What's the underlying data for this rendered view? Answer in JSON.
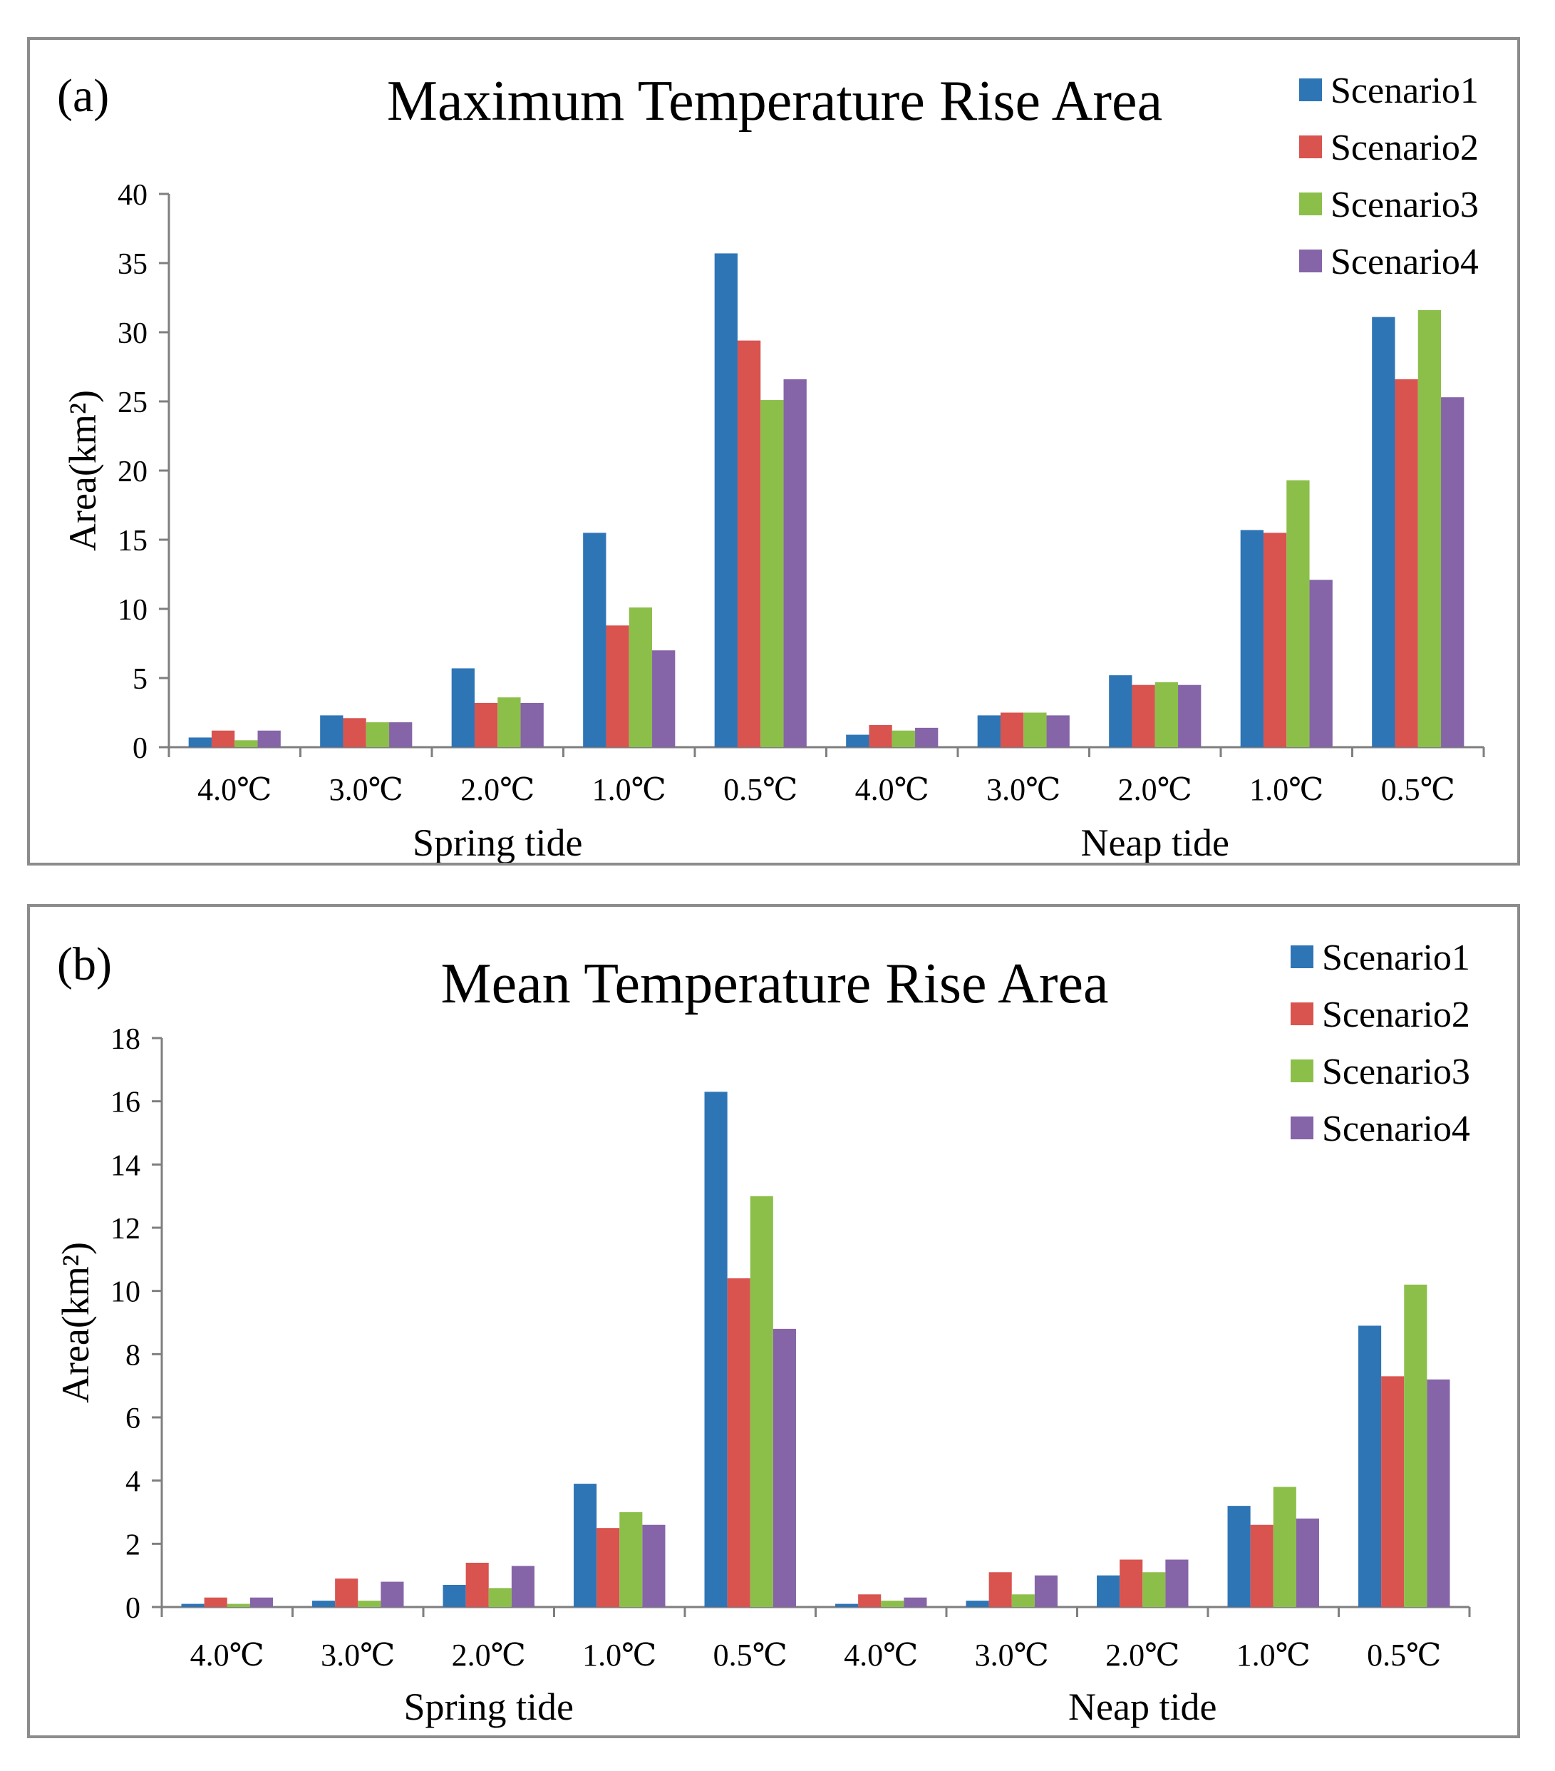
{
  "chart_data": [
    {
      "type": "bar",
      "panel_label": "(a)",
      "title": "Maximum Temperature Rise Area",
      "ylabel": "Area(km²)",
      "xlabel": "",
      "ylim": [
        0,
        40
      ],
      "yticks": [
        "0",
        "5",
        "10",
        "15",
        "20",
        "25",
        "30",
        "35",
        "40"
      ],
      "categories": [
        "4.0℃",
        "3.0℃",
        "2.0℃",
        "1.0℃",
        "0.5℃",
        "4.0℃",
        "3.0℃",
        "2.0℃",
        "1.0℃",
        "0.5℃"
      ],
      "groups": [
        "Spring  tide",
        "Neap tide"
      ],
      "legend_position": "top-right",
      "series": [
        {
          "name": "Scenario1",
          "color": "#2e75b6",
          "values": [
            0.7,
            2.3,
            5.7,
            15.5,
            35.7,
            0.9,
            2.3,
            5.2,
            15.7,
            31.1
          ]
        },
        {
          "name": "Scenario2",
          "color": "#d9534f",
          "values": [
            1.2,
            2.1,
            3.2,
            8.8,
            29.4,
            1.6,
            2.5,
            4.5,
            15.5,
            26.6
          ]
        },
        {
          "name": "Scenario3",
          "color": "#8cbf4a",
          "values": [
            0.5,
            1.8,
            3.6,
            10.1,
            25.1,
            1.2,
            2.5,
            4.7,
            19.3,
            31.6
          ]
        },
        {
          "name": "Scenario4",
          "color": "#8664a8",
          "values": [
            1.2,
            1.8,
            3.2,
            7.0,
            26.6,
            1.4,
            2.3,
            4.5,
            12.1,
            25.3
          ]
        }
      ]
    },
    {
      "type": "bar",
      "panel_label": "(b)",
      "title": "Mean Temperature Rise Area",
      "ylabel": "Area(km²)",
      "xlabel": "",
      "ylim": [
        0,
        18
      ],
      "yticks": [
        "0",
        "2",
        "4",
        "6",
        "8",
        "10",
        "12",
        "14",
        "16",
        "18"
      ],
      "categories": [
        "4.0℃",
        "3.0℃",
        "2.0℃",
        "1.0℃",
        "0.5℃",
        "4.0℃",
        "3.0℃",
        "2.0℃",
        "1.0℃",
        "0.5℃"
      ],
      "groups": [
        "Spring tide",
        "Neap tide"
      ],
      "legend_position": "top-right",
      "series": [
        {
          "name": "Scenario1",
          "color": "#2e75b6",
          "values": [
            0.1,
            0.2,
            0.7,
            3.9,
            16.3,
            0.1,
            0.2,
            1.0,
            3.2,
            8.9
          ]
        },
        {
          "name": "Scenario2",
          "color": "#d9534f",
          "values": [
            0.3,
            0.9,
            1.4,
            2.5,
            10.4,
            0.4,
            1.1,
            1.5,
            2.6,
            7.3
          ]
        },
        {
          "name": "Scenario3",
          "color": "#8cbf4a",
          "values": [
            0.1,
            0.2,
            0.6,
            3.0,
            13.0,
            0.2,
            0.4,
            1.1,
            3.8,
            10.2
          ]
        },
        {
          "name": "Scenario4",
          "color": "#8664a8",
          "values": [
            0.3,
            0.8,
            1.3,
            2.6,
            8.8,
            0.3,
            1.0,
            1.5,
            2.8,
            7.2
          ]
        }
      ]
    }
  ]
}
